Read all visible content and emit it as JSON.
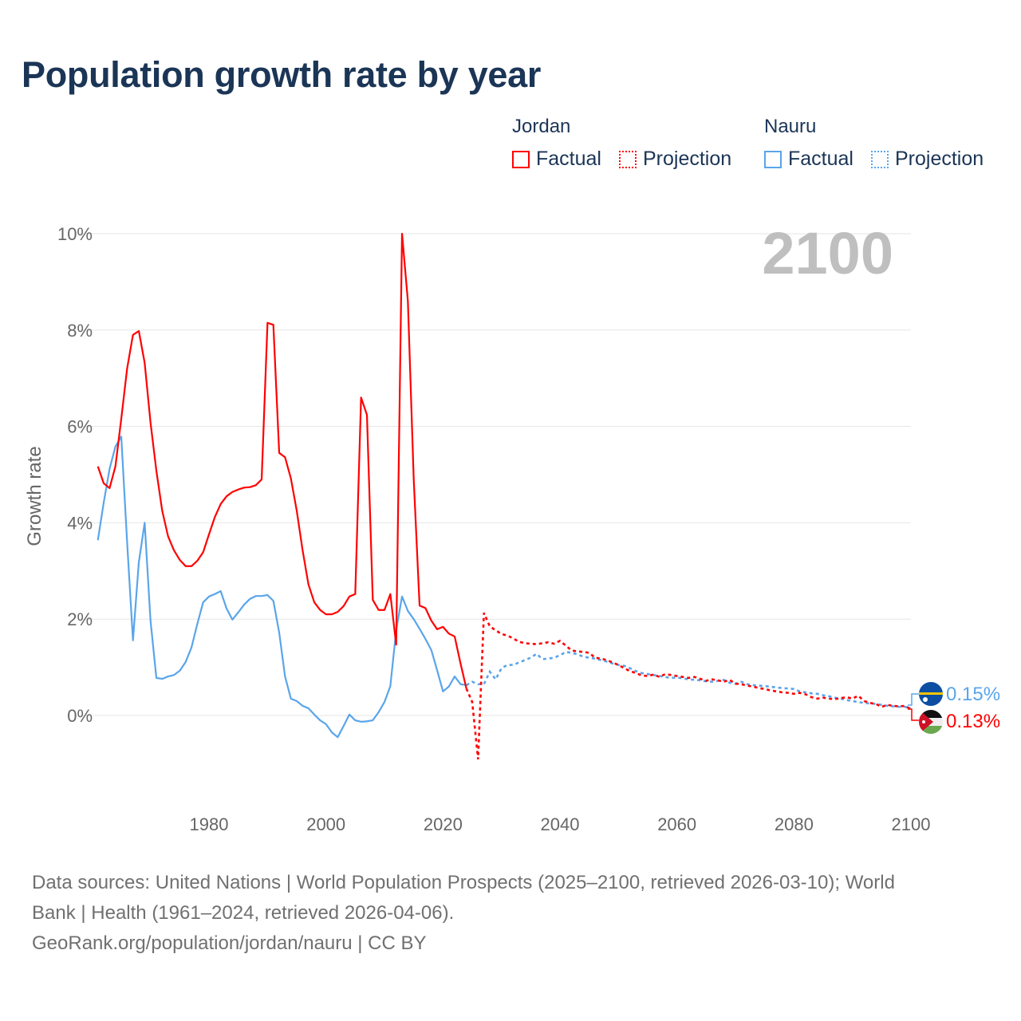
{
  "chart_data": {
    "type": "line",
    "title": "Population growth rate by year",
    "ylabel": "Growth rate",
    "xlabel": "",
    "xlim": [
      1961,
      2100
    ],
    "ylim": [
      -1.5,
      10.5
    ],
    "yticks": [
      0,
      2,
      4,
      6,
      8,
      10
    ],
    "ytick_labels": [
      "0%",
      "2%",
      "4%",
      "6%",
      "8%",
      "10%"
    ],
    "xticks": [
      1980,
      2000,
      2020,
      2040,
      2060,
      2080,
      2100
    ],
    "xtick_labels": [
      "1980",
      "2000",
      "2020",
      "2040",
      "2060",
      "2080",
      "2100"
    ],
    "grid": true,
    "current_year_label": "2100",
    "legend": {
      "placement": "top-right",
      "groups": [
        {
          "name": "Jordan",
          "items": [
            "Factual",
            "Projection"
          ]
        },
        {
          "name": "Nauru",
          "items": [
            "Factual",
            "Projection"
          ]
        }
      ]
    },
    "series": [
      {
        "name": "Jordan",
        "color": "#ff0000",
        "end_label": "0.13%",
        "factual_start": 1961,
        "factual": [
          5.17,
          4.82,
          4.72,
          5.17,
          6.16,
          7.2,
          7.9,
          7.98,
          7.32,
          6.08,
          5.08,
          4.25,
          3.72,
          3.43,
          3.23,
          3.1,
          3.1,
          3.21,
          3.39,
          3.76,
          4.12,
          4.39,
          4.55,
          4.64,
          4.69,
          4.73,
          4.74,
          4.78,
          4.9,
          8.15,
          8.11,
          5.45,
          5.36,
          4.92,
          4.25,
          3.43,
          2.72,
          2.35,
          2.19,
          2.1,
          2.1,
          2.15,
          2.27,
          2.47,
          2.52,
          6.6,
          6.24,
          2.4,
          2.19,
          2.19,
          2.52,
          1.47,
          10.0,
          8.6,
          4.9,
          2.28,
          2.23,
          1.97,
          1.79,
          1.84,
          1.7,
          1.64,
          1.08,
          0.56
        ],
        "projection_start": 2025,
        "projection": [
          0.28,
          -0.91,
          2.13,
          1.85,
          1.77,
          1.69,
          1.66,
          1.6,
          1.53,
          1.5,
          1.49,
          1.48,
          1.5,
          1.52,
          1.49,
          1.55,
          1.45,
          1.35,
          1.33,
          1.32,
          1.3,
          1.2,
          1.18,
          1.15,
          1.1,
          1.05,
          0.98,
          0.92,
          0.88,
          0.83,
          0.82,
          0.85,
          0.8,
          0.86,
          0.84,
          0.82,
          0.8,
          0.78,
          0.8,
          0.76,
          0.72,
          0.75,
          0.73,
          0.7,
          0.74,
          0.66,
          0.65,
          0.62,
          0.6,
          0.57,
          0.55,
          0.52,
          0.5,
          0.48,
          0.47,
          0.45,
          0.47,
          0.44,
          0.38,
          0.35,
          0.37,
          0.35,
          0.34,
          0.36,
          0.38,
          0.35,
          0.41,
          0.3,
          0.26,
          0.24,
          0.18,
          0.22,
          0.2,
          0.19,
          0.2,
          0.13
        ]
      },
      {
        "name": "Nauru",
        "color": "#5aa5ea",
        "end_label": "0.15%",
        "factual_start": 1961,
        "factual": [
          3.64,
          4.42,
          5.12,
          5.58,
          5.79,
          3.6,
          1.56,
          3.18,
          4.0,
          1.97,
          0.78,
          0.76,
          0.81,
          0.84,
          0.93,
          1.11,
          1.41,
          1.9,
          2.35,
          2.47,
          2.52,
          2.58,
          2.22,
          1.99,
          2.14,
          2.3,
          2.42,
          2.48,
          2.48,
          2.5,
          2.38,
          1.72,
          0.81,
          0.35,
          0.3,
          0.2,
          0.15,
          0.02,
          -0.1,
          -0.18,
          -0.35,
          -0.45,
          -0.22,
          0.02,
          -0.1,
          -0.13,
          -0.12,
          -0.1,
          0.07,
          0.28,
          0.61,
          1.77,
          2.47,
          2.17,
          2.0,
          1.8,
          1.59,
          1.36,
          0.94,
          0.5,
          0.6,
          0.81,
          0.65,
          0.63
        ],
        "projection_start": 2025,
        "projection": [
          0.7,
          0.65,
          0.65,
          0.91,
          0.75,
          0.98,
          1.05,
          1.05,
          1.1,
          1.15,
          1.2,
          1.28,
          1.17,
          1.18,
          1.2,
          1.25,
          1.32,
          1.3,
          1.27,
          1.22,
          1.2,
          1.18,
          1.15,
          1.12,
          1.08,
          1.05,
          1.03,
          0.98,
          0.92,
          0.88,
          0.86,
          0.84,
          0.82,
          0.8,
          0.78,
          0.79,
          0.77,
          0.75,
          0.74,
          0.73,
          0.71,
          0.7,
          0.72,
          0.74,
          0.68,
          0.66,
          0.7,
          0.65,
          0.63,
          0.62,
          0.61,
          0.6,
          0.58,
          0.57,
          0.56,
          0.55,
          0.5,
          0.48,
          0.46,
          0.45,
          0.42,
          0.4,
          0.37,
          0.35,
          0.32,
          0.3,
          0.28,
          0.26,
          0.25,
          0.24,
          0.22,
          0.2,
          0.19,
          0.18,
          0.18,
          0.15
        ]
      }
    ]
  },
  "legend": {
    "jordan": "Jordan",
    "nauru": "Nauru",
    "factual": "Factual",
    "projection": "Projection"
  },
  "colors": {
    "jordan": "#ff0000",
    "nauru": "#5aa5ea",
    "title": "#1b3556",
    "year": "#bfbfbf"
  },
  "footer": {
    "line1": "Data sources: United Nations | World Population Prospects (2025–2100, retrieved 2026-03-10); World",
    "line2": "Bank | Health (1961–2024, retrieved 2026-04-06).",
    "line3": "GeoRank.org/population/jordan/nauru | CC BY"
  }
}
